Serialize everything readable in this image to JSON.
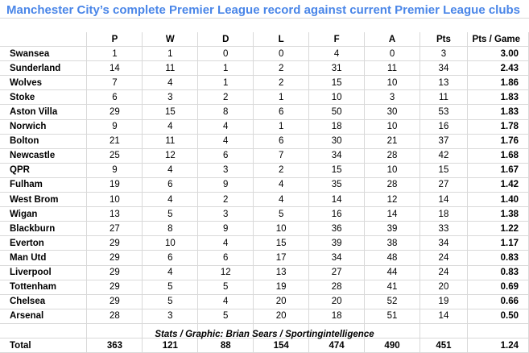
{
  "title": "Manchester City’s complete Premier League record against current Premier League clubs",
  "columns": [
    "",
    "P",
    "W",
    "D",
    "L",
    "F",
    "A",
    "Pts",
    "Pts / Game"
  ],
  "rows": [
    {
      "club": "Swansea",
      "p": "1",
      "w": "1",
      "d": "0",
      "l": "0",
      "f": "4",
      "a": "0",
      "pts": "3",
      "ppg": "3.00"
    },
    {
      "club": "Sunderland",
      "p": "14",
      "w": "11",
      "d": "1",
      "l": "2",
      "f": "31",
      "a": "11",
      "pts": "34",
      "ppg": "2.43"
    },
    {
      "club": "Wolves",
      "p": "7",
      "w": "4",
      "d": "1",
      "l": "2",
      "f": "15",
      "a": "10",
      "pts": "13",
      "ppg": "1.86"
    },
    {
      "club": "Stoke",
      "p": "6",
      "w": "3",
      "d": "2",
      "l": "1",
      "f": "10",
      "a": "3",
      "pts": "11",
      "ppg": "1.83"
    },
    {
      "club": "Aston Villa",
      "p": "29",
      "w": "15",
      "d": "8",
      "l": "6",
      "f": "50",
      "a": "30",
      "pts": "53",
      "ppg": "1.83"
    },
    {
      "club": "Norwich",
      "p": "9",
      "w": "4",
      "d": "4",
      "l": "1",
      "f": "18",
      "a": "10",
      "pts": "16",
      "ppg": "1.78"
    },
    {
      "club": "Bolton",
      "p": "21",
      "w": "11",
      "d": "4",
      "l": "6",
      "f": "30",
      "a": "21",
      "pts": "37",
      "ppg": "1.76"
    },
    {
      "club": "Newcastle",
      "p": "25",
      "w": "12",
      "d": "6",
      "l": "7",
      "f": "34",
      "a": "28",
      "pts": "42",
      "ppg": "1.68"
    },
    {
      "club": "QPR",
      "p": "9",
      "w": "4",
      "d": "3",
      "l": "2",
      "f": "15",
      "a": "10",
      "pts": "15",
      "ppg": "1.67"
    },
    {
      "club": "Fulham",
      "p": "19",
      "w": "6",
      "d": "9",
      "l": "4",
      "f": "35",
      "a": "28",
      "pts": "27",
      "ppg": "1.42"
    },
    {
      "club": "West Brom",
      "p": "10",
      "w": "4",
      "d": "2",
      "l": "4",
      "f": "14",
      "a": "12",
      "pts": "14",
      "ppg": "1.40"
    },
    {
      "club": "Wigan",
      "p": "13",
      "w": "5",
      "d": "3",
      "l": "5",
      "f": "16",
      "a": "14",
      "pts": "18",
      "ppg": "1.38"
    },
    {
      "club": "Blackburn",
      "p": "27",
      "w": "8",
      "d": "9",
      "l": "10",
      "f": "36",
      "a": "39",
      "pts": "33",
      "ppg": "1.22"
    },
    {
      "club": "Everton",
      "p": "29",
      "w": "10",
      "d": "4",
      "l": "15",
      "f": "39",
      "a": "38",
      "pts": "34",
      "ppg": "1.17"
    },
    {
      "club": "Man Utd",
      "p": "29",
      "w": "6",
      "d": "6",
      "l": "17",
      "f": "34",
      "a": "48",
      "pts": "24",
      "ppg": "0.83"
    },
    {
      "club": "Liverpool",
      "p": "29",
      "w": "4",
      "d": "12",
      "l": "13",
      "f": "27",
      "a": "44",
      "pts": "24",
      "ppg": "0.83"
    },
    {
      "club": "Tottenham",
      "p": "29",
      "w": "5",
      "d": "5",
      "l": "19",
      "f": "28",
      "a": "41",
      "pts": "20",
      "ppg": "0.69"
    },
    {
      "club": "Chelsea",
      "p": "29",
      "w": "5",
      "d": "4",
      "l": "20",
      "f": "20",
      "a": "52",
      "pts": "19",
      "ppg": "0.66"
    },
    {
      "club": "Arsenal",
      "p": "28",
      "w": "3",
      "d": "5",
      "l": "20",
      "f": "18",
      "a": "51",
      "pts": "14",
      "ppg": "0.50"
    }
  ],
  "total": {
    "club": "Total",
    "p": "363",
    "w": "121",
    "d": "88",
    "l": "154",
    "f": "474",
    "a": "490",
    "pts": "451",
    "ppg": "1.24"
  },
  "credit": "Stats / Graphic: Brian Sears / Sportingintelligence",
  "colors": {
    "title": "#4a86e8",
    "grid": "#d9d9d9"
  }
}
